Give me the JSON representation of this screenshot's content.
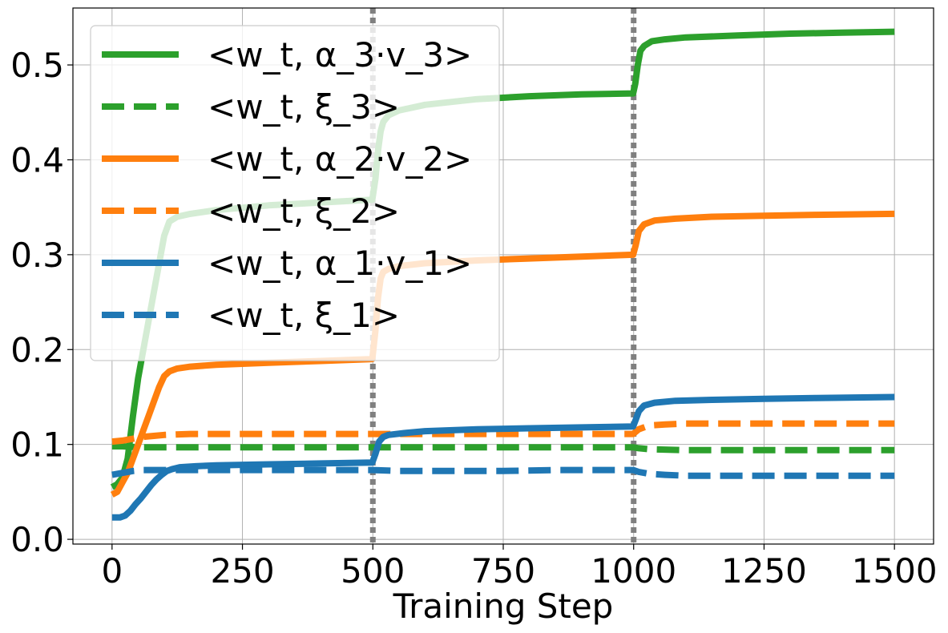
{
  "chart_data": {
    "type": "line",
    "title": "",
    "xlabel": "Training Step",
    "ylabel": "",
    "xlim": [
      -75,
      1575
    ],
    "ylim": [
      -0.005,
      0.56
    ],
    "xticks": [
      0,
      250,
      500,
      750,
      1000,
      1250,
      1500
    ],
    "yticks": [
      0.0,
      0.1,
      0.2,
      0.3,
      0.4,
      0.5
    ],
    "xtick_labels": [
      "0",
      "250",
      "500",
      "750",
      "1000",
      "1250",
      "1500"
    ],
    "ytick_labels": [
      "0.0",
      "0.1",
      "0.2",
      "0.3",
      "0.4",
      "0.5"
    ],
    "grid": true,
    "legend_position": "upper-left",
    "vlines": [
      500,
      1000
    ],
    "vline_color": "#808080",
    "series": [
      {
        "name": "<w_t, α_3·v_3>",
        "color": "#2ca02c",
        "dash": "solid",
        "points": [
          [
            0,
            0.055
          ],
          [
            10,
            0.058
          ],
          [
            20,
            0.065
          ],
          [
            30,
            0.085
          ],
          [
            40,
            0.13
          ],
          [
            50,
            0.17
          ],
          [
            60,
            0.2
          ],
          [
            70,
            0.23
          ],
          [
            80,
            0.26
          ],
          [
            90,
            0.29
          ],
          [
            100,
            0.32
          ],
          [
            110,
            0.335
          ],
          [
            125,
            0.34
          ],
          [
            150,
            0.343
          ],
          [
            200,
            0.347
          ],
          [
            300,
            0.352
          ],
          [
            400,
            0.355
          ],
          [
            499,
            0.358
          ],
          [
            505,
            0.38
          ],
          [
            510,
            0.41
          ],
          [
            515,
            0.43
          ],
          [
            520,
            0.44
          ],
          [
            530,
            0.447
          ],
          [
            550,
            0.452
          ],
          [
            600,
            0.458
          ],
          [
            700,
            0.464
          ],
          [
            800,
            0.467
          ],
          [
            900,
            0.469
          ],
          [
            999,
            0.47
          ],
          [
            1003,
            0.48
          ],
          [
            1008,
            0.5
          ],
          [
            1013,
            0.515
          ],
          [
            1020,
            0.52
          ],
          [
            1035,
            0.525
          ],
          [
            1060,
            0.527
          ],
          [
            1100,
            0.529
          ],
          [
            1200,
            0.531
          ],
          [
            1300,
            0.533
          ],
          [
            1400,
            0.534
          ],
          [
            1500,
            0.535
          ]
        ]
      },
      {
        "name": "<w_t, ξ_3>",
        "color": "#2ca02c",
        "dash": "dashed",
        "points": [
          [
            0,
            0.098
          ],
          [
            20,
            0.098
          ],
          [
            50,
            0.097
          ],
          [
            100,
            0.097
          ],
          [
            200,
            0.097
          ],
          [
            300,
            0.097
          ],
          [
            400,
            0.097
          ],
          [
            499,
            0.097
          ],
          [
            510,
            0.097
          ],
          [
            600,
            0.097
          ],
          [
            700,
            0.097
          ],
          [
            800,
            0.097
          ],
          [
            900,
            0.097
          ],
          [
            999,
            0.097
          ],
          [
            1010,
            0.096
          ],
          [
            1030,
            0.095
          ],
          [
            1100,
            0.094
          ],
          [
            1200,
            0.094
          ],
          [
            1300,
            0.094
          ],
          [
            1400,
            0.094
          ],
          [
            1500,
            0.094
          ]
        ]
      },
      {
        "name": "<w_t, α_2·v_2>",
        "color": "#ff7f0e",
        "dash": "solid",
        "points": [
          [
            0,
            0.047
          ],
          [
            10,
            0.05
          ],
          [
            20,
            0.06
          ],
          [
            30,
            0.07
          ],
          [
            40,
            0.085
          ],
          [
            50,
            0.1
          ],
          [
            60,
            0.115
          ],
          [
            70,
            0.13
          ],
          [
            80,
            0.145
          ],
          [
            90,
            0.16
          ],
          [
            100,
            0.172
          ],
          [
            110,
            0.177
          ],
          [
            125,
            0.18
          ],
          [
            150,
            0.182
          ],
          [
            200,
            0.184
          ],
          [
            300,
            0.186
          ],
          [
            400,
            0.188
          ],
          [
            499,
            0.19
          ],
          [
            505,
            0.22
          ],
          [
            510,
            0.255
          ],
          [
            515,
            0.275
          ],
          [
            520,
            0.282
          ],
          [
            530,
            0.285
          ],
          [
            550,
            0.288
          ],
          [
            600,
            0.291
          ],
          [
            700,
            0.294
          ],
          [
            800,
            0.296
          ],
          [
            900,
            0.298
          ],
          [
            999,
            0.3
          ],
          [
            1004,
            0.31
          ],
          [
            1010,
            0.325
          ],
          [
            1020,
            0.332
          ],
          [
            1040,
            0.336
          ],
          [
            1080,
            0.338
          ],
          [
            1150,
            0.34
          ],
          [
            1250,
            0.341
          ],
          [
            1350,
            0.342
          ],
          [
            1500,
            0.343
          ]
        ]
      },
      {
        "name": "<w_t, ξ_2>",
        "color": "#ff7f0e",
        "dash": "dashed",
        "points": [
          [
            0,
            0.103
          ],
          [
            20,
            0.104
          ],
          [
            40,
            0.106
          ],
          [
            60,
            0.108
          ],
          [
            80,
            0.109
          ],
          [
            100,
            0.11
          ],
          [
            150,
            0.111
          ],
          [
            200,
            0.111
          ],
          [
            300,
            0.111
          ],
          [
            400,
            0.111
          ],
          [
            499,
            0.111
          ],
          [
            550,
            0.111
          ],
          [
            650,
            0.111
          ],
          [
            750,
            0.111
          ],
          [
            850,
            0.111
          ],
          [
            950,
            0.111
          ],
          [
            999,
            0.111
          ],
          [
            1010,
            0.116
          ],
          [
            1030,
            0.12
          ],
          [
            1060,
            0.121
          ],
          [
            1100,
            0.122
          ],
          [
            1200,
            0.122
          ],
          [
            1300,
            0.122
          ],
          [
            1400,
            0.122
          ],
          [
            1500,
            0.122
          ]
        ]
      },
      {
        "name": "<w_t, α_1·v_1>",
        "color": "#1f77b4",
        "dash": "solid",
        "points": [
          [
            0,
            0.023
          ],
          [
            15,
            0.023
          ],
          [
            25,
            0.025
          ],
          [
            35,
            0.03
          ],
          [
            45,
            0.037
          ],
          [
            55,
            0.043
          ],
          [
            65,
            0.05
          ],
          [
            75,
            0.057
          ],
          [
            85,
            0.063
          ],
          [
            95,
            0.068
          ],
          [
            105,
            0.072
          ],
          [
            115,
            0.074
          ],
          [
            130,
            0.076
          ],
          [
            160,
            0.077
          ],
          [
            200,
            0.078
          ],
          [
            300,
            0.079
          ],
          [
            400,
            0.08
          ],
          [
            499,
            0.081
          ],
          [
            505,
            0.09
          ],
          [
            512,
            0.103
          ],
          [
            520,
            0.108
          ],
          [
            530,
            0.11
          ],
          [
            560,
            0.112
          ],
          [
            600,
            0.114
          ],
          [
            700,
            0.116
          ],
          [
            800,
            0.117
          ],
          [
            900,
            0.118
          ],
          [
            999,
            0.119
          ],
          [
            1004,
            0.126
          ],
          [
            1010,
            0.135
          ],
          [
            1020,
            0.141
          ],
          [
            1040,
            0.144
          ],
          [
            1080,
            0.146
          ],
          [
            1150,
            0.147
          ],
          [
            1250,
            0.148
          ],
          [
            1350,
            0.149
          ],
          [
            1500,
            0.15
          ]
        ]
      },
      {
        "name": "<w_t, ξ_1>",
        "color": "#1f77b4",
        "dash": "dashed",
        "points": [
          [
            0,
            0.068
          ],
          [
            20,
            0.07
          ],
          [
            40,
            0.072
          ],
          [
            60,
            0.073
          ],
          [
            80,
            0.073
          ],
          [
            100,
            0.073
          ],
          [
            200,
            0.073
          ],
          [
            300,
            0.073
          ],
          [
            400,
            0.073
          ],
          [
            499,
            0.073
          ],
          [
            550,
            0.072
          ],
          [
            650,
            0.072
          ],
          [
            750,
            0.072
          ],
          [
            850,
            0.073
          ],
          [
            950,
            0.073
          ],
          [
            999,
            0.073
          ],
          [
            1010,
            0.071
          ],
          [
            1030,
            0.069
          ],
          [
            1060,
            0.068
          ],
          [
            1100,
            0.067
          ],
          [
            1200,
            0.067
          ],
          [
            1300,
            0.067
          ],
          [
            1400,
            0.067
          ],
          [
            1500,
            0.067
          ]
        ]
      }
    ]
  }
}
